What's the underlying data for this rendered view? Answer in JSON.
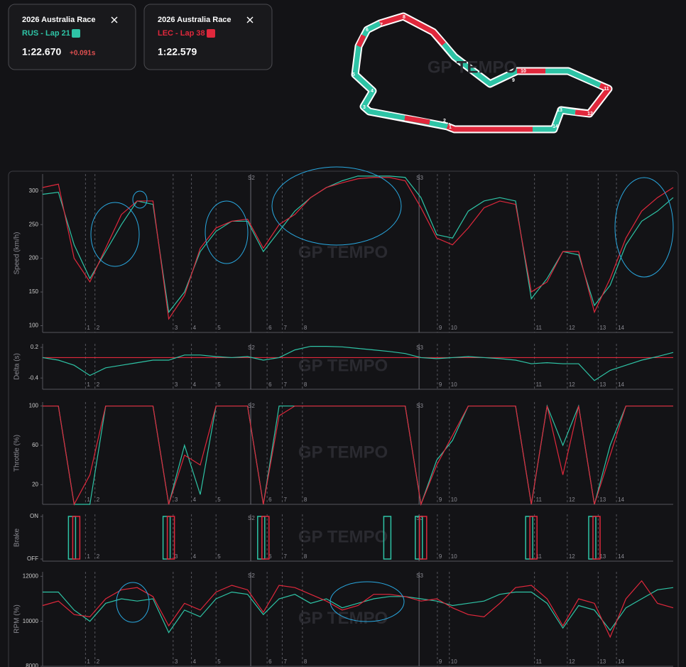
{
  "cards": [
    {
      "title": "2026 Australia Race",
      "driver": "RUS - Lap 21",
      "time": "1:22.670",
      "gap": "+0.091s"
    },
    {
      "title": "2026 Australia Race",
      "driver": "LEC - Lap 38",
      "time": "1:22.579"
    }
  ],
  "track": {
    "corners": [
      "1",
      "2",
      "3",
      "4",
      "5",
      "6",
      "7",
      "8",
      "9",
      "10",
      "11",
      "12",
      "13",
      "14"
    ]
  },
  "watermark": "GP TEMPO",
  "corners": [
    {
      "value": 6.8,
      "label": "1"
    },
    {
      "value": 8.3,
      "label": "2"
    },
    {
      "value": 20.7,
      "label": "3"
    },
    {
      "value": 23.6,
      "label": "4"
    },
    {
      "value": 27.5,
      "label": "5"
    },
    {
      "value": 35.6,
      "label": "6"
    },
    {
      "value": 38.0,
      "label": "7"
    },
    {
      "value": 41.2,
      "label": "8"
    },
    {
      "value": 62.6,
      "label": "9"
    },
    {
      "value": 64.5,
      "label": "10"
    },
    {
      "value": 78.0,
      "label": "11"
    },
    {
      "value": 83.2,
      "label": "12"
    },
    {
      "value": 88.1,
      "label": "13"
    },
    {
      "value": 91.0,
      "label": "14"
    }
  ],
  "sectors": [
    {
      "value": 33.0,
      "label": "S2"
    },
    {
      "value": 59.7,
      "label": "S3"
    }
  ],
  "chart_data": [
    {
      "type": "line",
      "y_label": "Speed (km/h)",
      "xlim": [
        0,
        100
      ],
      "ylim": [
        90,
        325
      ],
      "yticks": [
        100,
        150,
        200,
        250,
        300
      ],
      "x": [
        0,
        2.5,
        5,
        7.5,
        10,
        12.5,
        15,
        17.5,
        20,
        22.5,
        25,
        27.5,
        30,
        32.5,
        35,
        37.5,
        40,
        42.5,
        45,
        47.5,
        50,
        52.5,
        55,
        57.5,
        60,
        62.5,
        65,
        67.5,
        70,
        72.5,
        75,
        77.5,
        80,
        82.5,
        85,
        87.5,
        90,
        92.5,
        95,
        97.5,
        100
      ],
      "series": [
        {
          "color": "#2ec4a6",
          "values": [
            295,
            298,
            220,
            170,
            210,
            250,
            285,
            280,
            120,
            150,
            210,
            240,
            255,
            255,
            210,
            240,
            270,
            290,
            305,
            315,
            322,
            322,
            322,
            320,
            290,
            235,
            230,
            270,
            285,
            290,
            285,
            140,
            170,
            210,
            205,
            130,
            160,
            220,
            255,
            270,
            290
          ]
        },
        {
          "color": "#e0283c",
          "values": [
            305,
            310,
            200,
            165,
            215,
            265,
            285,
            285,
            110,
            145,
            215,
            245,
            255,
            258,
            215,
            250,
            265,
            290,
            305,
            312,
            318,
            320,
            320,
            315,
            275,
            230,
            220,
            245,
            275,
            285,
            280,
            150,
            165,
            210,
            210,
            120,
            170,
            230,
            270,
            290,
            305
          ]
        }
      ]
    },
    {
      "type": "line",
      "y_label": "Delta (s)",
      "xlim": [
        0,
        100
      ],
      "ylim": [
        -0.62,
        0.27
      ],
      "yticks": [
        0.2,
        -0.4
      ],
      "x": [
        0,
        2.5,
        5,
        7.5,
        10,
        12.5,
        15,
        17.5,
        20,
        22.5,
        25,
        27.5,
        30,
        32.5,
        35,
        37.5,
        40,
        42.5,
        45,
        47.5,
        50,
        52.5,
        55,
        57.5,
        60,
        62.5,
        65,
        67.5,
        70,
        72.5,
        75,
        77.5,
        80,
        82.5,
        85,
        87.5,
        90,
        92.5,
        95,
        97.5,
        100
      ],
      "series": [
        {
          "color": "#e0283c",
          "values": [
            0,
            0,
            0,
            0,
            0,
            0,
            0,
            0,
            0,
            0,
            0,
            0,
            0,
            0,
            0,
            0,
            0,
            0,
            0,
            0,
            0,
            0,
            0,
            0,
            0,
            0,
            0,
            0,
            0,
            0,
            0,
            0,
            0,
            0,
            0,
            0,
            0,
            0,
            0,
            0,
            0
          ]
        },
        {
          "color": "#2ec4a6",
          "values": [
            0,
            -0.05,
            -0.15,
            -0.35,
            -0.2,
            -0.15,
            -0.1,
            -0.05,
            -0.05,
            0.05,
            0.05,
            0.02,
            0,
            0.02,
            -0.05,
            0,
            0.15,
            0.22,
            0.22,
            0.21,
            0.18,
            0.15,
            0.12,
            0.08,
            0,
            -0.02,
            0,
            0.02,
            0,
            -0.02,
            -0.05,
            -0.12,
            -0.1,
            -0.12,
            -0.12,
            -0.45,
            -0.25,
            -0.15,
            -0.05,
            0.02,
            0.1
          ]
        }
      ]
    },
    {
      "type": "line",
      "y_label": "Throttle (%)",
      "xlim": [
        0,
        100
      ],
      "ylim": [
        0,
        104
      ],
      "yticks": [
        100,
        60,
        20
      ],
      "x": [
        0,
        2.5,
        5,
        7.5,
        10,
        12.5,
        15,
        17.5,
        20,
        22.5,
        25,
        27.5,
        30,
        32.5,
        35,
        37.5,
        40,
        42.5,
        45,
        47.5,
        50,
        52.5,
        55,
        57.5,
        60,
        62.5,
        65,
        67.5,
        70,
        72.5,
        75,
        77.5,
        80,
        82.5,
        85,
        87.5,
        90,
        92.5,
        95,
        97.5,
        100
      ],
      "series": [
        {
          "color": "#2ec4a6",
          "values": [
            100,
            100,
            0,
            0,
            100,
            100,
            100,
            100,
            0,
            60,
            10,
            100,
            100,
            100,
            0,
            100,
            100,
            100,
            100,
            100,
            100,
            100,
            100,
            100,
            0,
            45,
            65,
            100,
            100,
            100,
            100,
            0,
            100,
            60,
            100,
            0,
            60,
            100,
            100,
            100,
            100
          ]
        },
        {
          "color": "#e0283c",
          "values": [
            100,
            100,
            0,
            30,
            100,
            100,
            100,
            100,
            0,
            50,
            40,
            100,
            100,
            100,
            0,
            90,
            100,
            100,
            100,
            100,
            100,
            100,
            100,
            100,
            0,
            40,
            70,
            100,
            100,
            100,
            100,
            0,
            100,
            30,
            100,
            0,
            50,
            100,
            100,
            100,
            100
          ]
        }
      ]
    },
    {
      "type": "bar",
      "y_label": "Brake",
      "xlim": [
        0,
        100
      ],
      "ylim": [
        -0.05,
        1.05
      ],
      "yticks": [
        {
          "value": 1,
          "label": "ON"
        },
        {
          "value": 0,
          "label": "OFF"
        }
      ],
      "x": [
        0,
        2.5,
        5,
        7.5,
        10,
        12.5,
        15,
        17.5,
        20,
        22.5,
        25,
        27.5,
        30,
        32.5,
        35,
        37.5,
        40,
        42.5,
        45,
        47.5,
        50,
        52.5,
        55,
        57.5,
        60,
        62.5,
        65,
        67.5,
        70,
        72.5,
        75,
        77.5,
        80,
        82.5,
        85,
        87.5,
        90,
        92.5,
        95,
        97.5,
        100
      ],
      "series": [
        {
          "color": "#2ec4a6",
          "values": [
            0,
            0,
            1,
            0,
            0,
            0,
            0,
            0,
            1,
            0,
            0,
            0,
            0,
            0,
            1,
            0,
            0,
            0,
            0,
            0,
            0,
            0,
            1,
            0,
            1,
            0,
            0,
            0,
            0,
            0,
            0,
            1,
            0,
            0,
            0,
            1,
            0,
            0,
            0,
            0,
            0
          ]
        },
        {
          "color": "#e0283c",
          "values": [
            0,
            0,
            1,
            0,
            0,
            0,
            0,
            0,
            1,
            0,
            0,
            0,
            0,
            0,
            1,
            0,
            0,
            0,
            0,
            0,
            0,
            0,
            0,
            0,
            1,
            0,
            0,
            0,
            0,
            0,
            0,
            1,
            0,
            0,
            0,
            1,
            0,
            0,
            0,
            0,
            0
          ]
        }
      ]
    },
    {
      "type": "line",
      "y_label": "RPM (%)",
      "xlim": [
        0,
        100
      ],
      "ylim": [
        8000,
        12200
      ],
      "yticks": [
        12000,
        10000,
        8000
      ],
      "x": [
        0,
        2.5,
        5,
        7.5,
        10,
        12.5,
        15,
        17.5,
        20,
        22.5,
        25,
        27.5,
        30,
        32.5,
        35,
        37.5,
        40,
        42.5,
        45,
        47.5,
        50,
        52.5,
        55,
        57.5,
        60,
        62.5,
        65,
        67.5,
        70,
        72.5,
        75,
        77.5,
        80,
        82.5,
        85,
        87.5,
        90,
        92.5,
        95,
        97.5,
        100
      ],
      "series": [
        {
          "color": "#2ec4a6",
          "values": [
            11300,
            11300,
            10500,
            10000,
            10800,
            11000,
            10900,
            11000,
            9500,
            10500,
            10200,
            11000,
            11300,
            11200,
            10300,
            11000,
            11200,
            10800,
            11000,
            10600,
            10800,
            11000,
            11100,
            11100,
            11000,
            10900,
            10700,
            10800,
            10900,
            11200,
            11300,
            11300,
            10800,
            9700,
            10700,
            10500,
            9600,
            10600,
            11000,
            11400,
            11500
          ]
        },
        {
          "color": "#e0283c",
          "values": [
            10700,
            10900,
            10300,
            10200,
            11000,
            11400,
            11500,
            11100,
            9800,
            10800,
            10500,
            11300,
            11600,
            11400,
            10400,
            11600,
            11500,
            11200,
            10900,
            10500,
            10700,
            11200,
            11200,
            11100,
            10900,
            11000,
            10600,
            10300,
            10200,
            10800,
            11500,
            11600,
            11000,
            9800,
            11000,
            10800,
            9300,
            11000,
            11800,
            10800,
            10600
          ]
        }
      ]
    }
  ]
}
